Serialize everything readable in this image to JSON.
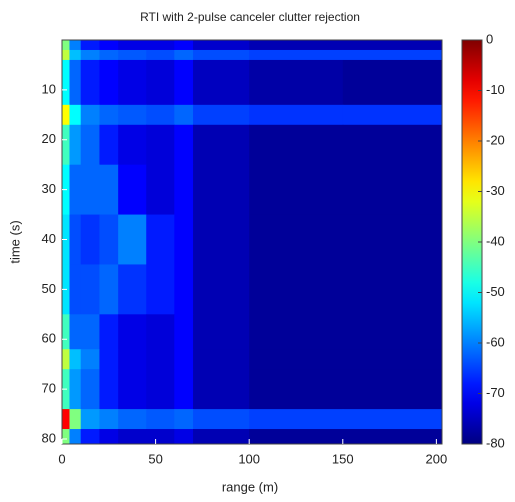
{
  "chart_data": {
    "type": "heatmap",
    "title": "RTI with 2-pulse canceler clutter rejection",
    "x_label": "range (m)",
    "y_label": "time (s)",
    "x_edges": [
      0,
      4,
      10,
      20,
      30,
      45,
      60,
      70,
      100,
      150,
      203
    ],
    "y_edges": [
      0,
      2,
      4,
      13,
      17,
      25,
      35,
      45,
      55,
      62,
      66,
      74,
      78,
      81
    ],
    "z": [
      [
        -40,
        -60,
        -68,
        -70,
        -72,
        -72,
        -70,
        -74,
        -76,
        -76
      ],
      [
        -35,
        -55,
        -60,
        -62,
        -63,
        -64,
        -62,
        -64,
        -65,
        -65
      ],
      [
        -50,
        -62,
        -68,
        -70,
        -72,
        -73,
        -70,
        -75,
        -77,
        -78
      ],
      [
        -30,
        -50,
        -60,
        -62,
        -63,
        -64,
        -62,
        -65,
        -66,
        -66
      ],
      [
        -45,
        -58,
        -62,
        -68,
        -72,
        -73,
        -70,
        -76,
        -78,
        -78
      ],
      [
        -50,
        -62,
        -62,
        -62,
        -70,
        -73,
        -70,
        -76,
        -78,
        -78
      ],
      [
        -52,
        -64,
        -66,
        -64,
        -60,
        -68,
        -70,
        -76,
        -78,
        -78
      ],
      [
        -52,
        -64,
        -64,
        -62,
        -66,
        -68,
        -70,
        -76,
        -78,
        -78
      ],
      [
        -45,
        -62,
        -62,
        -68,
        -72,
        -73,
        -70,
        -76,
        -78,
        -78
      ],
      [
        -35,
        -55,
        -60,
        -68,
        -72,
        -73,
        -70,
        -76,
        -78,
        -78
      ],
      [
        -45,
        -58,
        -62,
        -68,
        -72,
        -73,
        -70,
        -76,
        -78,
        -78
      ],
      [
        -10,
        -40,
        -58,
        -60,
        -62,
        -63,
        -62,
        -64,
        -65,
        -65
      ],
      [
        -40,
        -60,
        -68,
        -72,
        -74,
        -74,
        -72,
        -76,
        -78,
        -78
      ]
    ],
    "xlim": [
      0,
      203
    ],
    "xticks": [
      0,
      50,
      100,
      150,
      200
    ],
    "ylim": [
      0,
      81
    ],
    "y_inverted": true,
    "yticks": [
      10,
      20,
      30,
      40,
      50,
      60,
      70,
      80
    ],
    "colormap": "jet",
    "clim": [
      -80,
      0
    ],
    "colorbar_ticks": [
      0,
      -10,
      -20,
      -30,
      -40,
      -50,
      -60,
      -70,
      -80
    ]
  }
}
